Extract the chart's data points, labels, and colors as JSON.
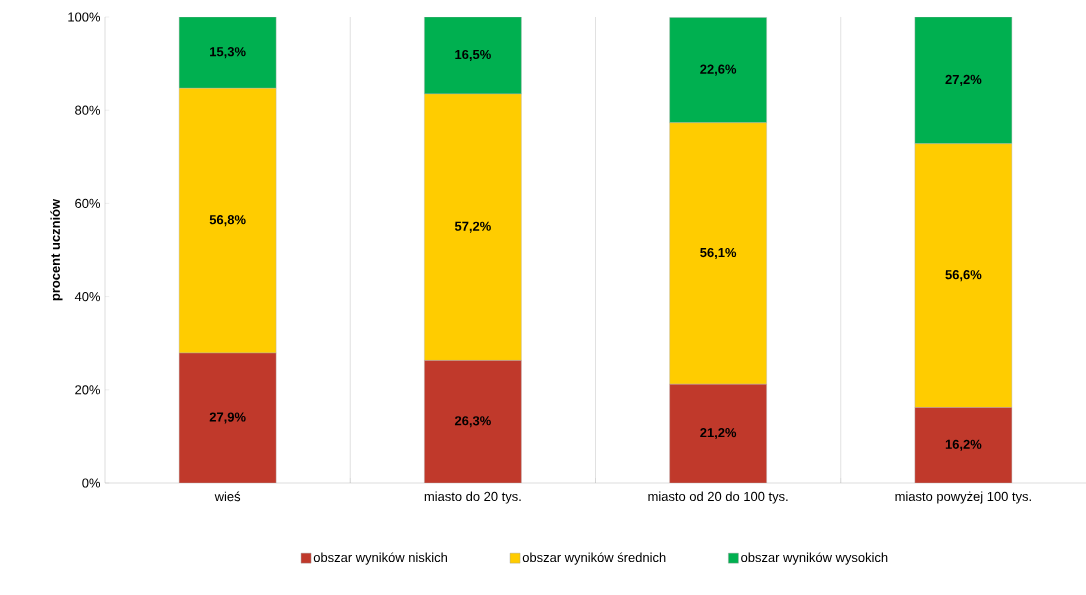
{
  "chart_data": {
    "type": "bar",
    "stacked": true,
    "ylabel": "procent uczniów",
    "categories": [
      "wieś",
      "miasto do 20 tys.",
      "miasto od 20 do 100 tys.",
      "miasto powyżej 100 tys."
    ],
    "series": [
      {
        "name": "obszar wyników niskich",
        "color": "#c0392b",
        "values": [
          27.9,
          26.3,
          21.2,
          16.2
        ],
        "value_labels": [
          "27,9%",
          "26,3%",
          "21,2%",
          "16,2%"
        ]
      },
      {
        "name": "obszar wyników średnich",
        "color": "#ffcc00",
        "values": [
          56.8,
          57.2,
          56.1,
          56.6
        ],
        "value_labels": [
          "56,8%",
          "57,2%",
          "56,1%",
          "56,6%"
        ]
      },
      {
        "name": "obszar wyników wysokich",
        "color": "#00b050",
        "values": [
          15.3,
          16.5,
          22.6,
          27.2
        ],
        "value_labels": [
          "15,3%",
          "16,5%",
          "22,6%",
          "27,2%"
        ]
      }
    ],
    "ylim": [
      0,
      100
    ],
    "yticks": [
      {
        "value": 0,
        "label": "0%"
      },
      {
        "value": 20,
        "label": "20%"
      },
      {
        "value": 40,
        "label": "40%"
      },
      {
        "value": 60,
        "label": "60%"
      },
      {
        "value": 80,
        "label": "80%"
      },
      {
        "value": 100,
        "label": "100%"
      }
    ],
    "grid": "x",
    "legend": "bottom"
  }
}
